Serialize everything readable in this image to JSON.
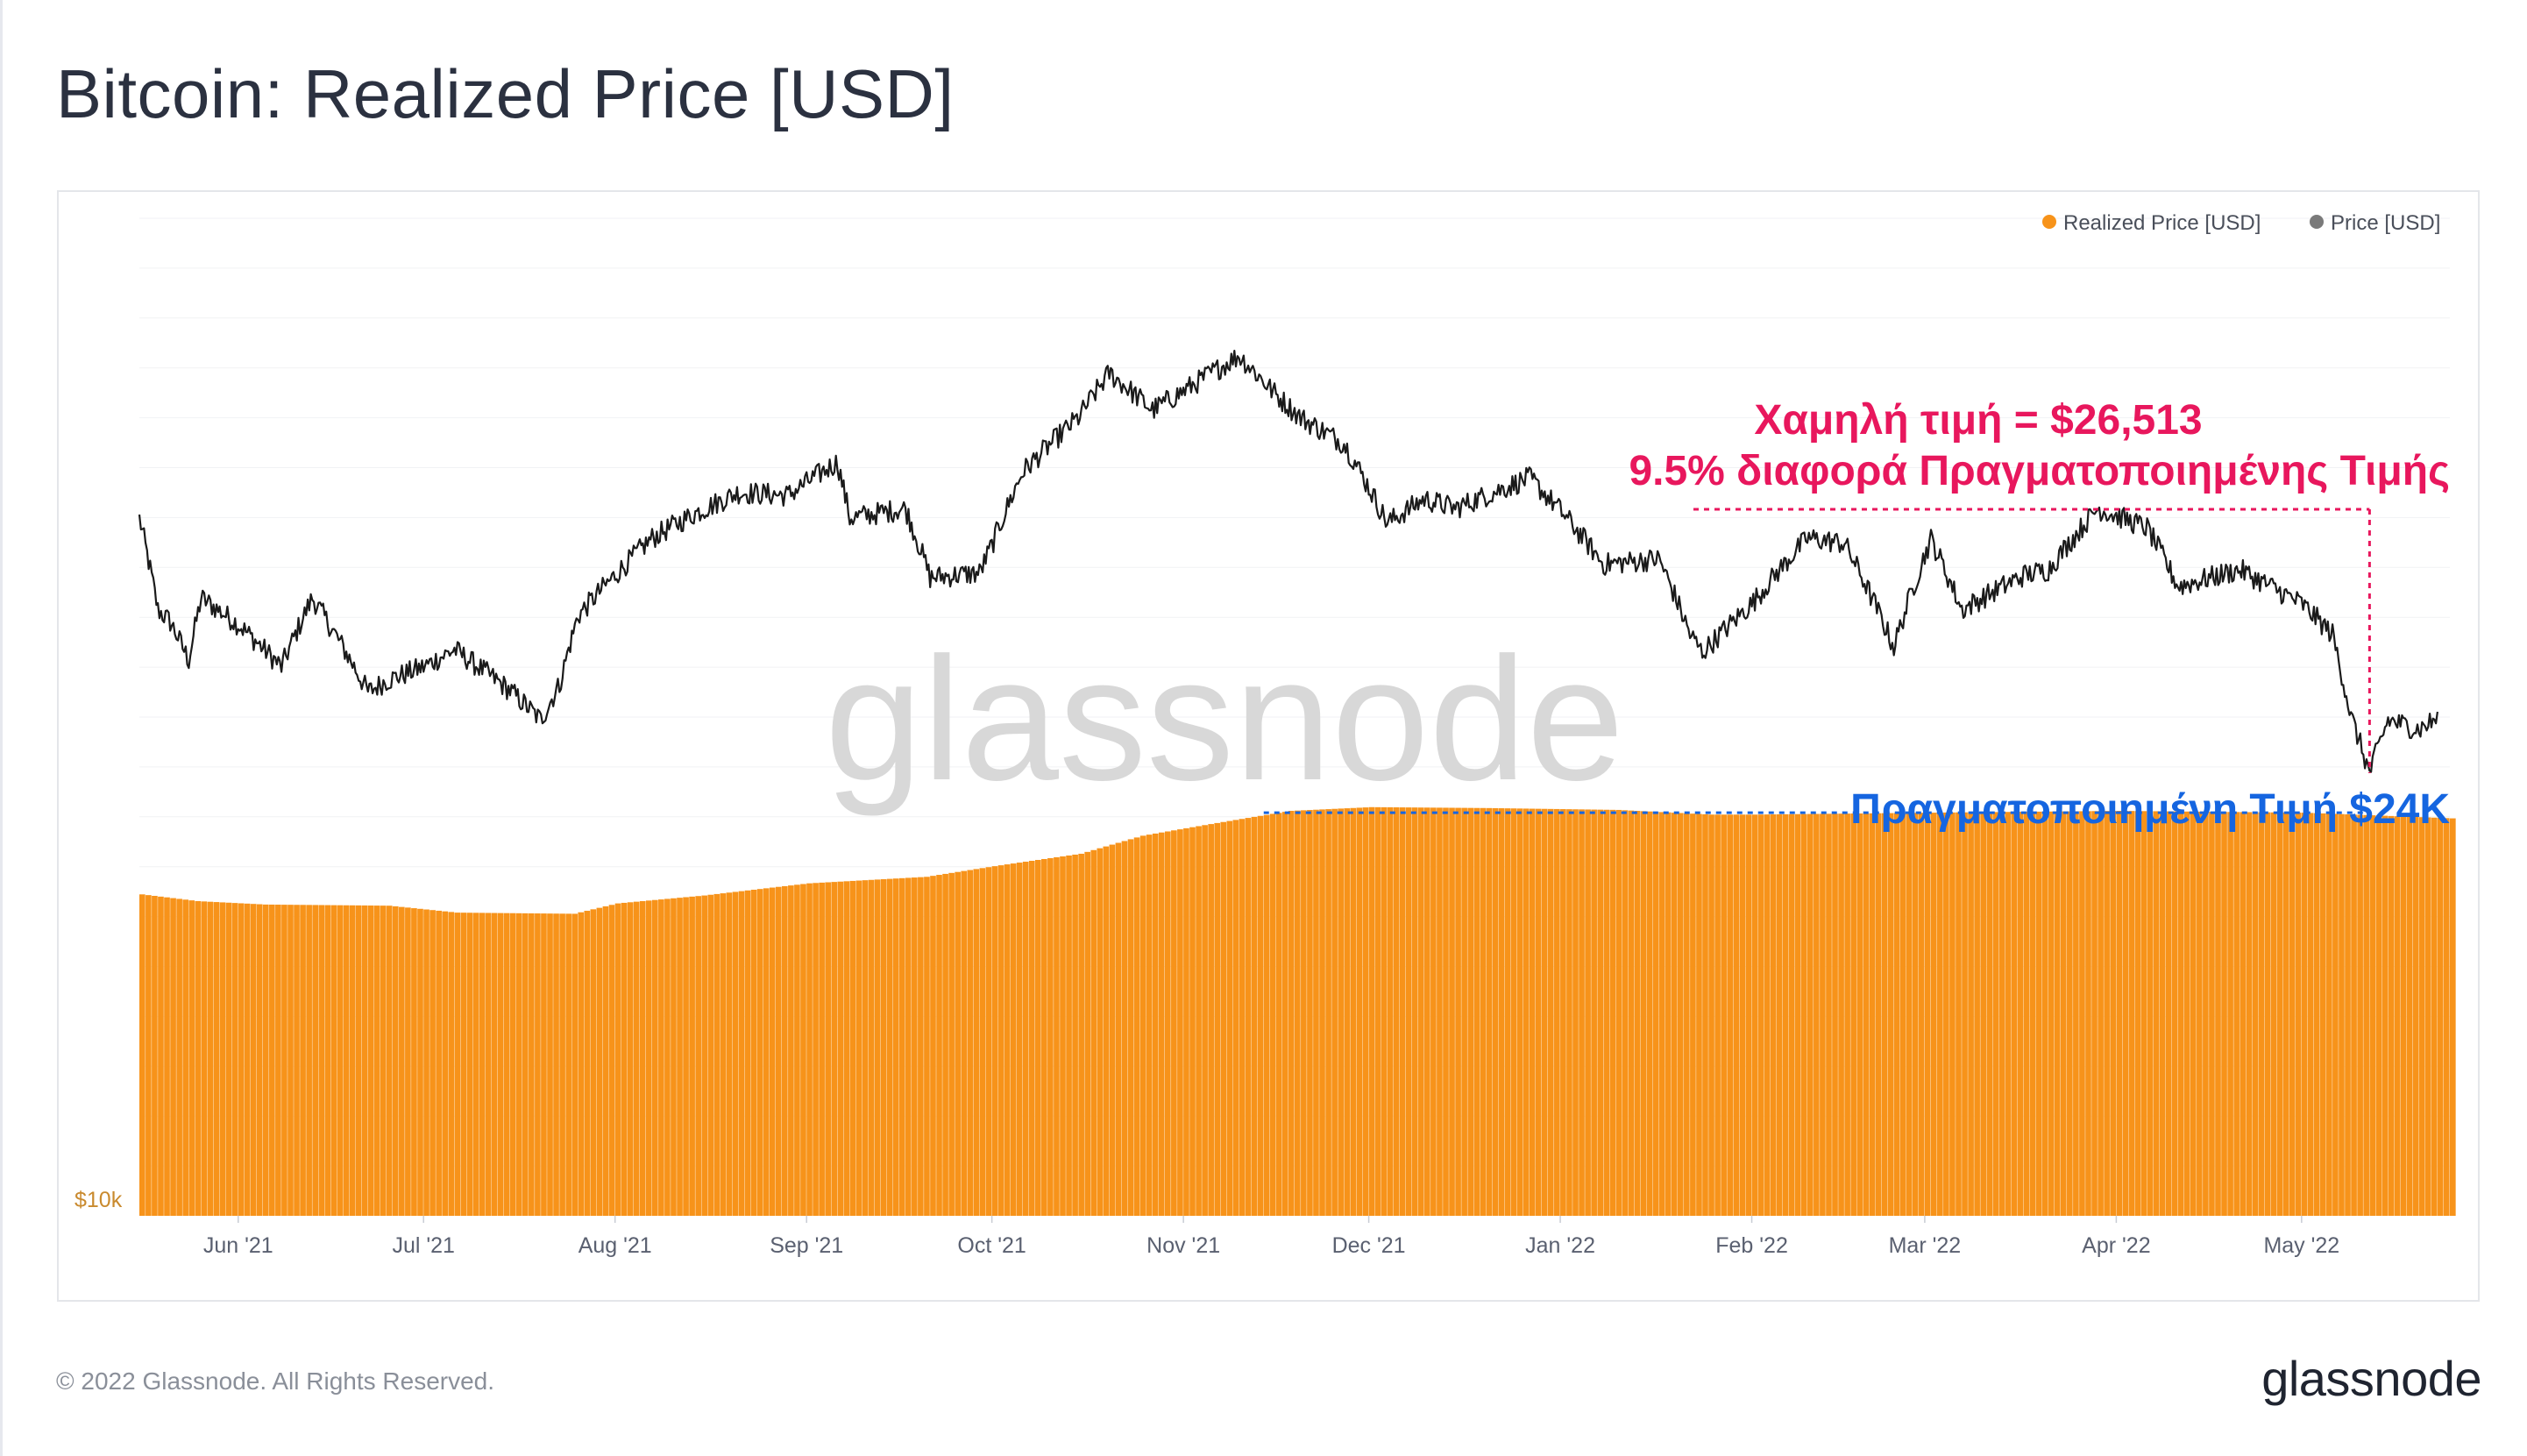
{
  "header": {
    "title": "Bitcoin: Realized Price [USD]"
  },
  "footer": {
    "copyright": "© 2022 Glassnode. All Rights Reserved.",
    "logo_text": "glassnode"
  },
  "watermark": "glassnode",
  "colors": {
    "realized": "#f7931a",
    "price": "#1a1a1a",
    "annotation_low": "#e8175d",
    "annotation_realized": "#1565e0",
    "axis_text": "#5a6070",
    "ytick": "#c98a2e"
  },
  "chart_data": {
    "type": "line",
    "title": "Bitcoin: Realized Price [USD]",
    "y_scale": "log",
    "ylim": [
      10000,
      90000
    ],
    "yticks": [
      {
        "value": 10000,
        "label": "$10k"
      }
    ],
    "xlim": [
      "2021-05-16",
      "2022-05-25"
    ],
    "xticks": [
      {
        "date": "2021-06-01",
        "label": "Jun '21"
      },
      {
        "date": "2021-07-01",
        "label": "Jul '21"
      },
      {
        "date": "2021-08-01",
        "label": "Aug '21"
      },
      {
        "date": "2021-09-01",
        "label": "Sep '21"
      },
      {
        "date": "2021-10-01",
        "label": "Oct '21"
      },
      {
        "date": "2021-11-01",
        "label": "Nov '21"
      },
      {
        "date": "2021-12-01",
        "label": "Dec '21"
      },
      {
        "date": "2022-01-01",
        "label": "Jan '22"
      },
      {
        "date": "2022-02-01",
        "label": "Feb '22"
      },
      {
        "date": "2022-03-01",
        "label": "Mar '22"
      },
      {
        "date": "2022-04-01",
        "label": "Apr '22"
      },
      {
        "date": "2022-05-01",
        "label": "May '22"
      }
    ],
    "legend": {
      "position": "top-right"
    },
    "series": [
      {
        "name": "Realized Price [USD]",
        "color": "#f7931a",
        "render": "bars",
        "points": [
          [
            "2021-05-16",
            20300
          ],
          [
            "2021-05-25",
            20000
          ],
          [
            "2021-06-05",
            19850
          ],
          [
            "2021-06-25",
            19800
          ],
          [
            "2021-07-06",
            19500
          ],
          [
            "2021-07-25",
            19450
          ],
          [
            "2021-08-01",
            19900
          ],
          [
            "2021-08-15",
            20250
          ],
          [
            "2021-09-01",
            20800
          ],
          [
            "2021-09-20",
            21100
          ],
          [
            "2021-10-01",
            21600
          ],
          [
            "2021-10-15",
            22200
          ],
          [
            "2021-10-25",
            23100
          ],
          [
            "2021-11-05",
            23700
          ],
          [
            "2021-11-18",
            24400
          ],
          [
            "2021-12-01",
            24600
          ],
          [
            "2021-12-20",
            24550
          ],
          [
            "2022-01-10",
            24450
          ],
          [
            "2022-01-25",
            24200
          ],
          [
            "2022-02-01",
            24200
          ],
          [
            "2022-03-01",
            24300
          ],
          [
            "2022-04-01",
            24400
          ],
          [
            "2022-05-01",
            24300
          ],
          [
            "2022-05-25",
            24000
          ]
        ]
      },
      {
        "name": "Price [USD]",
        "color": "#1a1a1a",
        "render": "line",
        "points": [
          [
            "2021-05-16",
            46500
          ],
          [
            "2021-05-19",
            38000
          ],
          [
            "2021-05-21",
            37000
          ],
          [
            "2021-05-24",
            34000
          ],
          [
            "2021-05-26",
            39000
          ],
          [
            "2021-06-01",
            36800
          ],
          [
            "2021-06-08",
            33500
          ],
          [
            "2021-06-13",
            39000
          ],
          [
            "2021-06-22",
            31700
          ],
          [
            "2021-06-25",
            32500
          ],
          [
            "2021-07-01",
            33500
          ],
          [
            "2021-07-06",
            34800
          ],
          [
            "2021-07-15",
            31800
          ],
          [
            "2021-07-20",
            29800
          ],
          [
            "2021-07-23",
            32200
          ],
          [
            "2021-07-26",
            37500
          ],
          [
            "2021-08-01",
            41000
          ],
          [
            "2021-08-07",
            44500
          ],
          [
            "2021-08-14",
            47000
          ],
          [
            "2021-08-21",
            49200
          ],
          [
            "2021-08-29",
            48900
          ],
          [
            "2021-09-06",
            52600
          ],
          [
            "2021-09-08",
            46500
          ],
          [
            "2021-09-17",
            47500
          ],
          [
            "2021-09-21",
            40800
          ],
          [
            "2021-09-29",
            41200
          ],
          [
            "2021-10-01",
            43800
          ],
          [
            "2021-10-06",
            51500
          ],
          [
            "2021-10-15",
            58000
          ],
          [
            "2021-10-20",
            64000
          ],
          [
            "2021-10-27",
            59000
          ],
          [
            "2021-11-01",
            61500
          ],
          [
            "2021-11-10",
            66500
          ],
          [
            "2021-11-16",
            61000
          ],
          [
            "2021-11-20",
            58000
          ],
          [
            "2021-11-27",
            54800
          ],
          [
            "2021-12-04",
            46000
          ],
          [
            "2021-12-10",
            48500
          ],
          [
            "2021-12-15",
            47500
          ],
          [
            "2021-12-27",
            50800
          ],
          [
            "2022-01-01",
            47300
          ],
          [
            "2022-01-08",
            42000
          ],
          [
            "2022-01-17",
            42500
          ],
          [
            "2022-01-22",
            36000
          ],
          [
            "2022-01-24",
            34600
          ],
          [
            "2022-02-01",
            38500
          ],
          [
            "2022-02-10",
            44500
          ],
          [
            "2022-02-16",
            44000
          ],
          [
            "2022-02-24",
            35000
          ],
          [
            "2022-03-02",
            44400
          ],
          [
            "2022-03-07",
            38000
          ],
          [
            "2022-03-17",
            41000
          ],
          [
            "2022-03-21",
            41500
          ],
          [
            "2022-03-29",
            47500
          ],
          [
            "2022-04-06",
            45500
          ],
          [
            "2022-04-11",
            40000
          ],
          [
            "2022-04-21",
            41500
          ],
          [
            "2022-05-01",
            38500
          ],
          [
            "2022-05-06",
            36000
          ],
          [
            "2022-05-09",
            30000
          ],
          [
            "2022-05-12",
            26513
          ],
          [
            "2022-05-15",
            29800
          ],
          [
            "2022-05-20",
            29200
          ],
          [
            "2022-05-23",
            29900
          ]
        ]
      }
    ],
    "annotations": [
      {
        "text": "Χαμηλή τιμή = $26,513",
        "color": "#e8175d"
      },
      {
        "text": "9.5% διαφορά  Πραγματοποιημένης Τιμής",
        "color": "#e8175d"
      },
      {
        "text": "Πραγματοποιημένη Τιμή $24K",
        "color": "#1565e0"
      }
    ]
  }
}
